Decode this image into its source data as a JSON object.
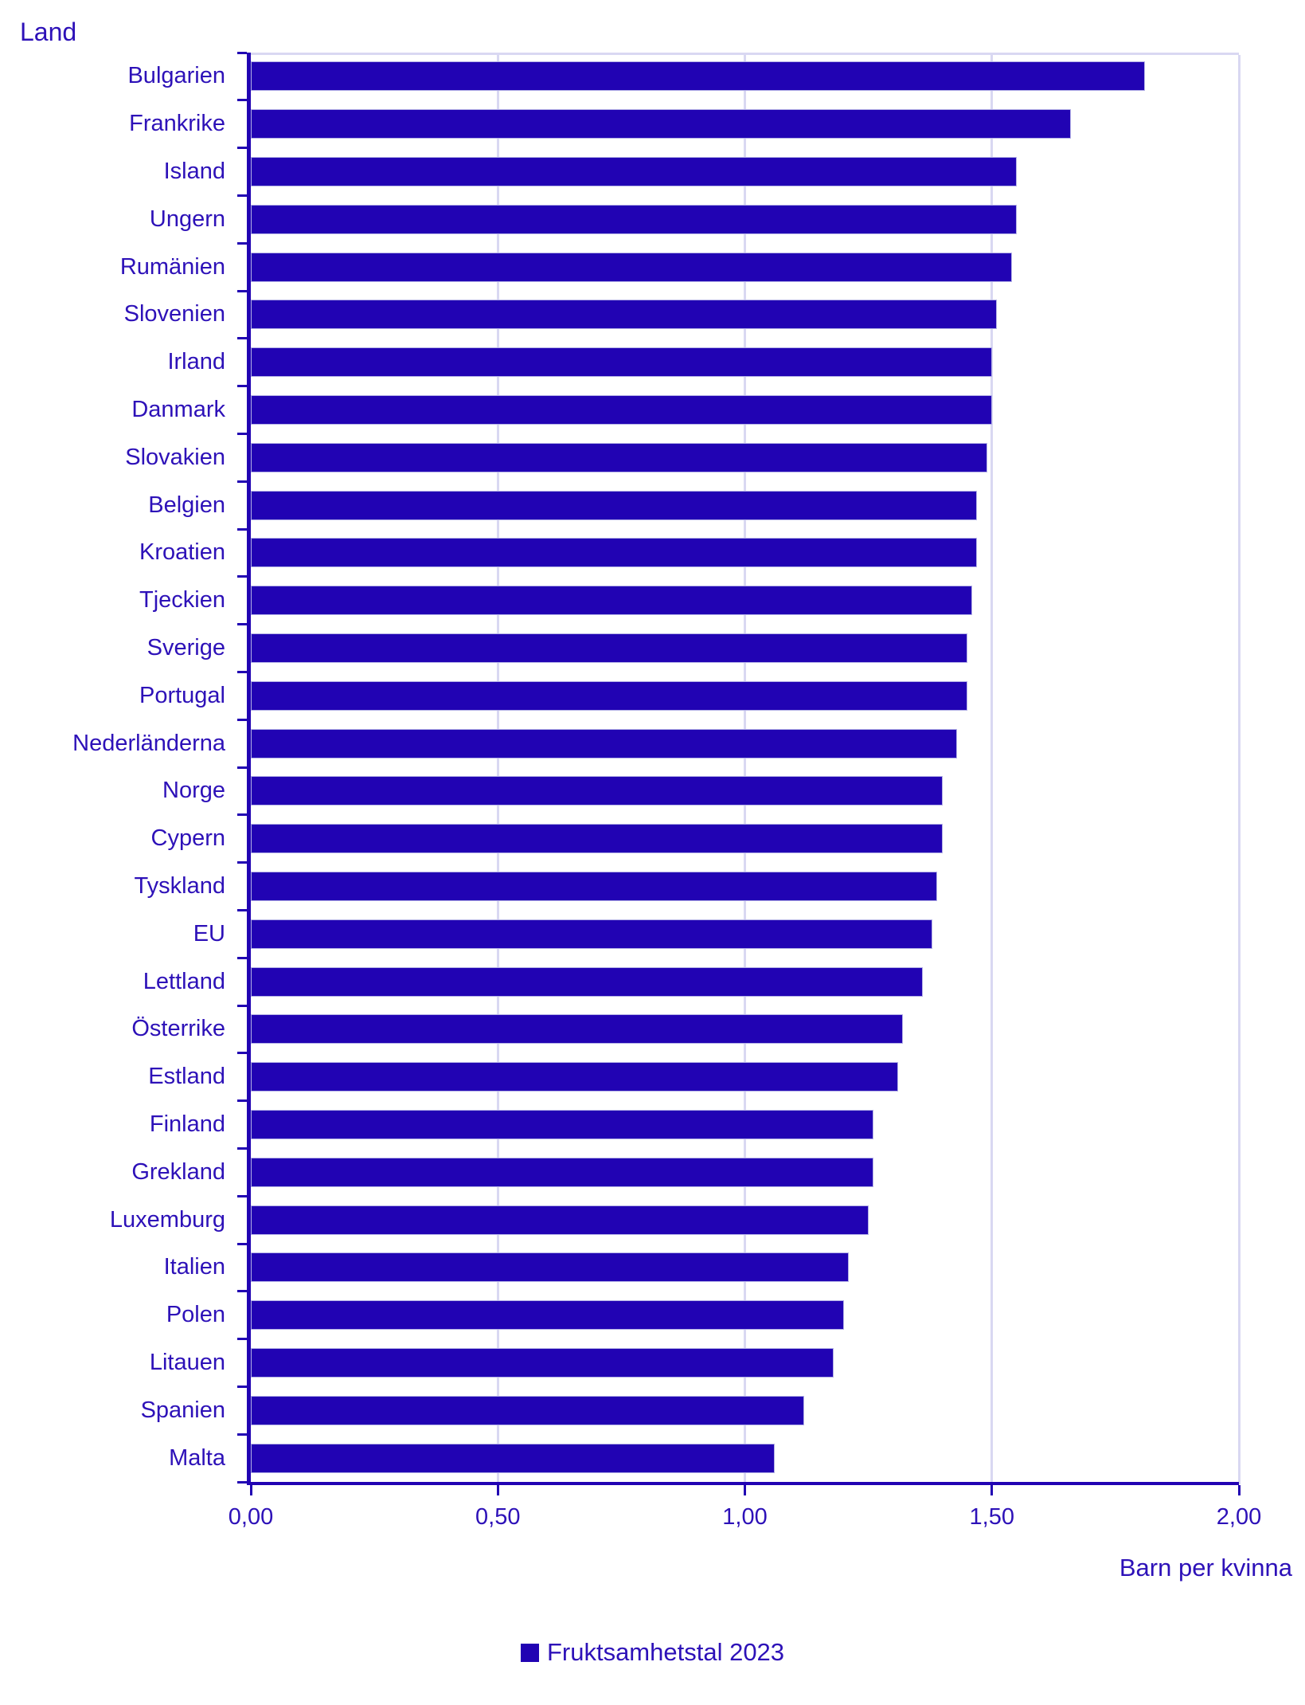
{
  "title": "Land",
  "x_axis": {
    "label": "Barn per kvinna",
    "tick_labels": [
      "0,00",
      "0,50",
      "1,00",
      "1,50",
      "2,00"
    ],
    "tick_values": [
      0,
      0.5,
      1.0,
      1.5,
      2.0
    ],
    "max": 2.0
  },
  "legend": {
    "label": "Fruktsamhetstal 2023"
  },
  "colors": {
    "bar": "#2103b3",
    "bar_outline": "#b3b0e6",
    "axis": "#2103b3",
    "gridline": "#d9d8f2",
    "text": "#2d11b8"
  },
  "chart_data": {
    "type": "bar",
    "orientation": "horizontal",
    "title": "Land",
    "xlabel": "Barn per kvinna",
    "legend_entries": [
      "Fruktsamhetstal 2023"
    ],
    "xlim": [
      0,
      2.0
    ],
    "grid": true,
    "categories": [
      "Bulgarien",
      "Frankrike",
      "Island",
      "Ungern",
      "Rumänien",
      "Slovenien",
      "Irland",
      "Danmark",
      "Slovakien",
      "Belgien",
      "Kroatien",
      "Tjeckien",
      "Sverige",
      "Portugal",
      "Nederländerna",
      "Norge",
      "Cypern",
      "Tyskland",
      "EU",
      "Lettland",
      "Österrike",
      "Estland",
      "Finland",
      "Grekland",
      "Luxemburg",
      "Italien",
      "Polen",
      "Litauen",
      "Spanien",
      "Malta"
    ],
    "values": [
      1.81,
      1.66,
      1.55,
      1.55,
      1.54,
      1.51,
      1.5,
      1.5,
      1.49,
      1.47,
      1.47,
      1.46,
      1.45,
      1.45,
      1.43,
      1.4,
      1.4,
      1.39,
      1.38,
      1.36,
      1.32,
      1.31,
      1.26,
      1.26,
      1.25,
      1.21,
      1.2,
      1.18,
      1.12,
      1.06
    ]
  }
}
